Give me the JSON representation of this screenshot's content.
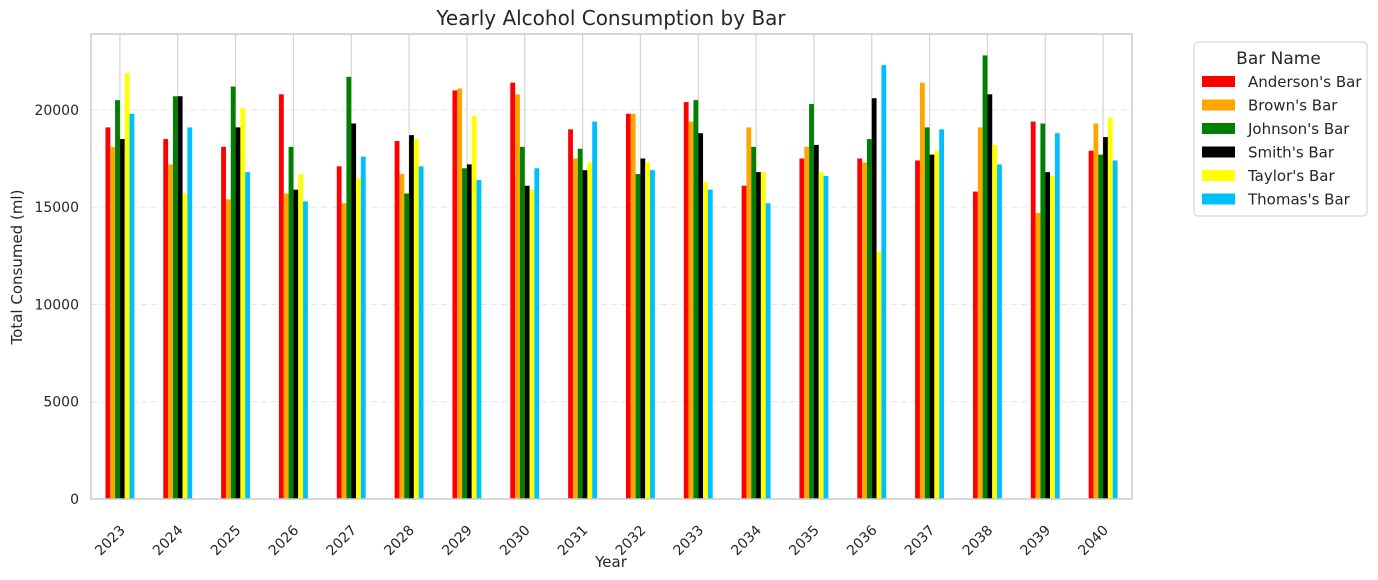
{
  "chart_data": {
    "type": "bar",
    "title": "Yearly Alcohol Consumption by Bar",
    "xlabel": "Year",
    "ylabel": "Total Consumed (ml)",
    "ylim": [
      0,
      23900
    ],
    "yticks": [
      0,
      5000,
      10000,
      15000,
      20000
    ],
    "grid": true,
    "legend_position": "outside top-right",
    "legend_title": "Bar Name",
    "categories": [
      "2023",
      "2024",
      "2025",
      "2026",
      "2027",
      "2028",
      "2029",
      "2030",
      "2031",
      "2032",
      "2033",
      "2034",
      "2035",
      "2036",
      "2037",
      "2038",
      "2039",
      "2040"
    ],
    "series": [
      {
        "name": "Anderson's Bar",
        "color": "#ff0000",
        "values": [
          19100,
          18500,
          18100,
          20800,
          17100,
          18400,
          21000,
          21400,
          19000,
          19800,
          20400,
          16100,
          17500,
          17500,
          17400,
          15800,
          19400,
          17900
        ]
      },
      {
        "name": "Brown's Bar",
        "color": "#ffa500",
        "values": [
          18100,
          17200,
          15400,
          15700,
          15200,
          16700,
          21100,
          20800,
          17500,
          19800,
          19400,
          19100,
          18100,
          17300,
          21400,
          19100,
          14700,
          19300
        ]
      },
      {
        "name": "Johnson's Bar",
        "color": "#008000",
        "values": [
          20500,
          20700,
          21200,
          18100,
          21700,
          15700,
          17000,
          18100,
          18000,
          16700,
          20500,
          18100,
          20300,
          18500,
          19100,
          22800,
          19300,
          17700
        ]
      },
      {
        "name": "Smith's Bar",
        "color": "#000000",
        "values": [
          18500,
          20700,
          19100,
          15900,
          19300,
          18700,
          17200,
          16100,
          16900,
          17500,
          18800,
          16800,
          18200,
          20600,
          17700,
          20800,
          16800,
          18600
        ]
      },
      {
        "name": "Taylor's Bar",
        "color": "#ffff00",
        "values": [
          21900,
          15700,
          20100,
          16700,
          16500,
          18500,
          19700,
          15900,
          17300,
          17300,
          16300,
          16800,
          16800,
          12700,
          17900,
          18200,
          16600,
          19600
        ]
      },
      {
        "name": "Thomas's Bar",
        "color": "#00bfff",
        "values": [
          19800,
          19100,
          16800,
          15300,
          17600,
          17100,
          16400,
          17000,
          19400,
          16900,
          15900,
          15200,
          16600,
          22300,
          19000,
          17200,
          18800,
          17400
        ]
      }
    ]
  }
}
